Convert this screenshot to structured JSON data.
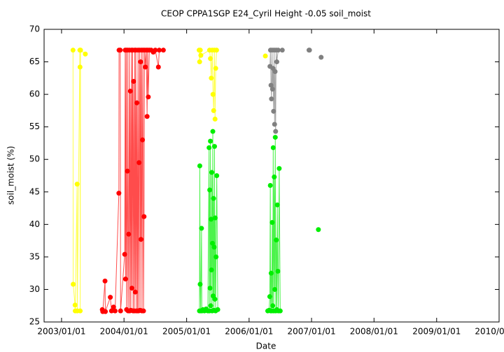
{
  "chart_data": {
    "type": "line",
    "title": "CEOP CPPA1SGP E24_Cyril Height -0.05 soil_moist",
    "x_label": "Date",
    "y_label": "soil_moist (%)",
    "xlim": [
      "2002/09/21",
      "2010/01/01"
    ],
    "xticks": [
      "2003/01/01",
      "2004/01/01",
      "2005/01/01",
      "2006/01/01",
      "2007/01/01",
      "2008/01/01",
      "2009/01/01",
      "2010/01/01"
    ],
    "ylim": [
      25,
      70
    ],
    "yticks": [
      25,
      30,
      35,
      40,
      45,
      50,
      55,
      60,
      65,
      70
    ],
    "grid": false,
    "series": [
      {
        "color": "#ffff00",
        "x": [
          "2003/03/09",
          "2003/03/10",
          "2003/03/21",
          "2003/03/22",
          "2003/04/02",
          "2003/04/03",
          "2003/04/18",
          "2003/04/19",
          "2003/04/20",
          "2003/04/22",
          "2003/05/20"
        ],
        "values": [
          66.8,
          30.8,
          27.6,
          26.7,
          46.2,
          26.7,
          66.8,
          64.2,
          26.7,
          66.8,
          66.2
        ]
      },
      {
        "color": "#ff0000",
        "x": [
          "2003/08/27",
          "2003/08/30",
          "2003/09/12",
          "2003/09/14",
          "2003/10/13",
          "2003/10/20",
          "2003/11/01",
          "2003/11/10",
          "2003/12/02",
          "2003/12/03",
          "2003/12/10",
          "2003/12/12",
          "2004/01/05",
          "2004/01/08",
          "2004/01/10",
          "2004/01/14",
          "2004/01/16",
          "2004/01/21",
          "2004/01/22",
          "2004/01/25",
          "2004/01/28",
          "2004/02/01",
          "2004/02/03",
          "2004/02/07",
          "2004/02/10",
          "2004/02/14",
          "2004/02/16",
          "2004/02/20",
          "2004/02/23",
          "2004/02/26",
          "2004/03/01",
          "2004/03/04",
          "2004/03/07",
          "2004/03/10",
          "2004/03/13",
          "2004/03/16",
          "2004/03/20",
          "2004/03/23",
          "2004/03/26",
          "2004/03/29",
          "2004/04/01",
          "2004/04/04",
          "2004/04/07",
          "2004/04/09",
          "2004/04/12",
          "2004/04/15",
          "2004/04/18",
          "2004/04/21",
          "2004/04/24",
          "2004/04/27",
          "2004/04/30",
          "2004/05/05",
          "2004/05/10",
          "2004/05/15",
          "2004/05/18",
          "2004/05/22",
          "2004/05/28",
          "2004/06/08",
          "2004/06/20",
          "2004/07/02",
          "2004/07/20",
          "2004/07/25",
          "2004/08/18"
        ],
        "values": [
          26.9,
          26.6,
          31.3,
          26.6,
          28.8,
          26.7,
          27.3,
          26.7,
          44.8,
          66.8,
          66.8,
          26.7,
          35.4,
          66.8,
          31.6,
          66.8,
          26.9,
          48.2,
          66.8,
          26.7,
          38.5,
          66.8,
          26.7,
          60.5,
          26.8,
          66.8,
          30.2,
          66.8,
          26.7,
          62.0,
          26.7,
          66.8,
          29.6,
          66.8,
          26.7,
          58.7,
          26.7,
          66.8,
          26.7,
          49.5,
          66.8,
          26.8,
          65.0,
          37.7,
          66.8,
          26.7,
          53.0,
          66.8,
          26.7,
          41.2,
          66.8,
          64.2,
          66.8,
          56.6,
          66.8,
          59.6,
          66.8,
          66.8,
          66.5,
          66.8,
          64.2,
          66.8,
          66.8
        ]
      },
      {
        "color": "#ffff00",
        "x": [
          "2005/03/15",
          "2005/03/18",
          "2005/03/22",
          "2005/03/25",
          "2005/05/15",
          "2005/05/20",
          "2005/05/25",
          "2005/05/30",
          "2005/06/04",
          "2005/06/08",
          "2005/06/12",
          "2005/06/16",
          "2005/06/20",
          "2005/06/25"
        ],
        "values": [
          66.8,
          65.0,
          66.8,
          66.0,
          66.8,
          65.5,
          62.5,
          66.8,
          60.0,
          57.5,
          66.8,
          56.2,
          64.0,
          66.8
        ]
      },
      {
        "color": "#00ee00",
        "x": [
          "2005/03/17",
          "2005/03/19",
          "2005/03/21",
          "2005/03/24",
          "2005/03/29",
          "2005/03/31",
          "2005/04/06",
          "2005/04/15",
          "2005/04/25",
          "2005/05/05",
          "2005/05/12",
          "2005/05/14",
          "2005/05/16",
          "2005/05/18",
          "2005/05/20",
          "2005/05/22",
          "2005/05/24",
          "2005/05/26",
          "2005/05/28",
          "2005/05/30",
          "2005/06/01",
          "2005/06/03",
          "2005/06/05",
          "2005/06/07",
          "2005/06/09",
          "2005/06/11",
          "2005/06/13",
          "2005/06/15",
          "2005/06/17",
          "2005/06/19",
          "2005/06/22",
          "2005/06/26",
          "2005/07/02"
        ],
        "values": [
          26.7,
          49.0,
          30.8,
          26.7,
          39.4,
          26.7,
          26.9,
          26.7,
          27.0,
          26.7,
          51.8,
          26.7,
          45.3,
          30.2,
          52.8,
          27.5,
          40.8,
          33.0,
          48.0,
          26.7,
          37.1,
          54.3,
          29.0,
          44.0,
          26.8,
          36.5,
          52.0,
          28.5,
          41.0,
          26.7,
          35.0,
          47.5,
          26.9
        ]
      },
      {
        "color": "#ffff00",
        "x": [
          "2006/04/06"
        ],
        "values": [
          65.9
        ]
      },
      {
        "color": "#00ee00",
        "x": [
          "2006/04/20",
          "2006/04/28",
          "2006/05/02",
          "2006/05/05",
          "2006/05/07",
          "2006/05/10",
          "2006/05/13",
          "2006/05/16",
          "2006/05/19",
          "2006/05/22",
          "2006/05/25",
          "2006/05/28",
          "2006/05/31",
          "2006/06/03",
          "2006/06/06",
          "2006/06/09",
          "2006/06/12",
          "2006/06/15",
          "2006/06/18",
          "2006/06/21",
          "2006/06/26",
          "2006/07/02"
        ],
        "values": [
          26.7,
          26.8,
          28.9,
          46.0,
          26.7,
          32.5,
          26.7,
          40.3,
          27.5,
          51.8,
          26.7,
          47.3,
          30.0,
          53.4,
          26.7,
          37.6,
          26.9,
          43.0,
          32.8,
          26.7,
          48.6,
          26.7
        ]
      },
      {
        "color": "#808080",
        "x": [
          "2006/05/03",
          "2006/05/06",
          "2006/05/09",
          "2006/05/12",
          "2006/05/15",
          "2006/05/18",
          "2006/05/21",
          "2006/05/24",
          "2006/05/27",
          "2006/05/30",
          "2006/06/02",
          "2006/06/05",
          "2006/06/08",
          "2006/06/12",
          "2006/06/20",
          "2006/07/14"
        ],
        "values": [
          64.3,
          66.8,
          61.4,
          59.3,
          66.8,
          60.8,
          64.0,
          57.4,
          66.8,
          55.4,
          63.5,
          54.3,
          66.8,
          65.0,
          66.8,
          66.8
        ]
      },
      {
        "color": "#808080",
        "x": [
          "2006/12/17",
          "2006/12/20"
        ],
        "values": [
          66.8,
          66.8
        ]
      },
      {
        "color": "#808080",
        "x": [
          "2007/02/26"
        ],
        "values": [
          65.7
        ]
      },
      {
        "color": "#00ee00",
        "x": [
          "2007/02/10"
        ],
        "values": [
          39.2
        ]
      }
    ]
  }
}
